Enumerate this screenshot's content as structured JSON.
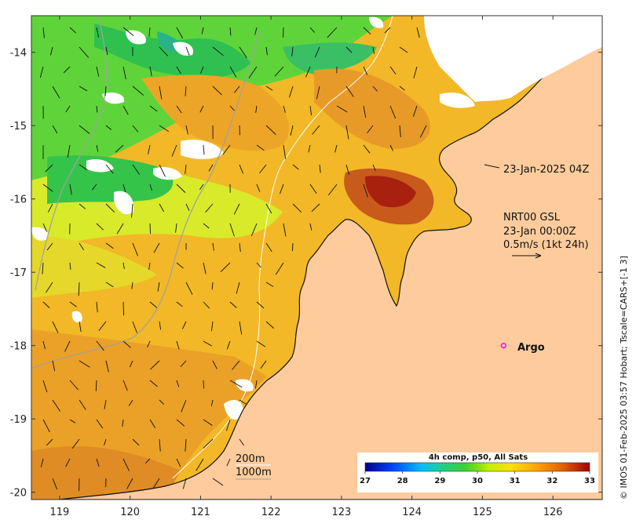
{
  "map": {
    "lon_range": [
      118.6,
      126.7
    ],
    "lat_range": [
      -20.1,
      -13.5
    ],
    "x_ticks": [
      "119",
      "120",
      "121",
      "122",
      "123",
      "124",
      "125",
      "126"
    ],
    "y_ticks": [
      "-14",
      "-15",
      "-16",
      "-17",
      "-18",
      "-19",
      "-20"
    ]
  },
  "annotations": {
    "image_time": "23-Jan-2025 04Z",
    "current_line1": "NRT00 GSL",
    "current_line2": "23-Jan 00:00Z",
    "current_line3": "0.5m/s (1kt 24h)",
    "contour_200": "200m",
    "contour_1000": "1000m",
    "argo_label": "Argo",
    "side_caption": "© IMOS 01-Feb-2025 03:57 Hobart; Tscale=CARS+[-1 3]"
  },
  "colorbar": {
    "title": "4h comp, p50, All Sats",
    "ticks": [
      "27",
      "28",
      "29",
      "30",
      "31",
      "32",
      "33"
    ],
    "colors": [
      "#00008f",
      "#0040ff",
      "#00bfff",
      "#20d080",
      "#40d030",
      "#c0f000",
      "#ffe000",
      "#ffa000",
      "#e06000",
      "#a00000"
    ]
  },
  "argo": {
    "lon": 125.3,
    "lat": -18.0,
    "color": "#ff00ff"
  },
  "colors": {
    "land": "#fdcb9c",
    "coast": "#111111",
    "contour_200": "#ffffff",
    "contour_1000": "#a0a0a0"
  }
}
